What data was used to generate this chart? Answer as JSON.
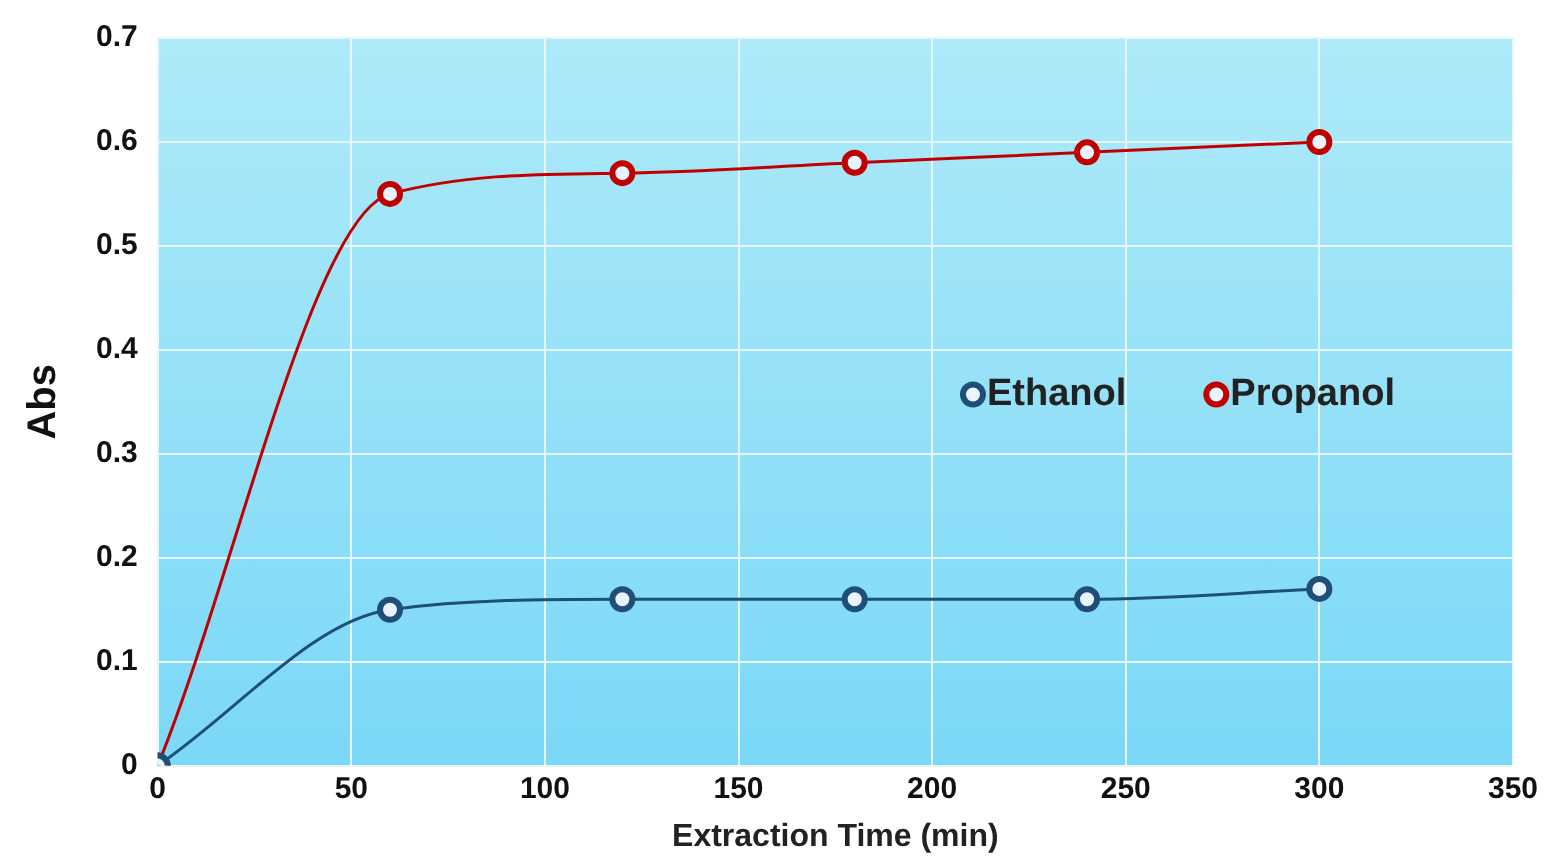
{
  "chart_data": {
    "type": "line",
    "xlabel": "Extraction Time (min)",
    "ylabel": "Abs",
    "x": [
      0,
      60,
      120,
      180,
      240,
      300
    ],
    "series": [
      {
        "name": "Ethanol",
        "color": "#1f4e79",
        "values": [
          0,
          0.15,
          0.16,
          0.16,
          0.16,
          0.17
        ]
      },
      {
        "name": "Propanol",
        "color": "#c00000",
        "values": [
          0,
          0.55,
          0.57,
          0.58,
          0.59,
          0.6
        ]
      }
    ],
    "xlim": [
      0,
      350
    ],
    "xticks": [
      0,
      50,
      100,
      150,
      200,
      250,
      300,
      350
    ],
    "ylim": [
      0,
      0.7
    ],
    "yticks": [
      0,
      0.1,
      0.2,
      0.3,
      0.4,
      0.5,
      0.6,
      0.7
    ],
    "grid": true,
    "legend": "right",
    "marker": "circle"
  }
}
